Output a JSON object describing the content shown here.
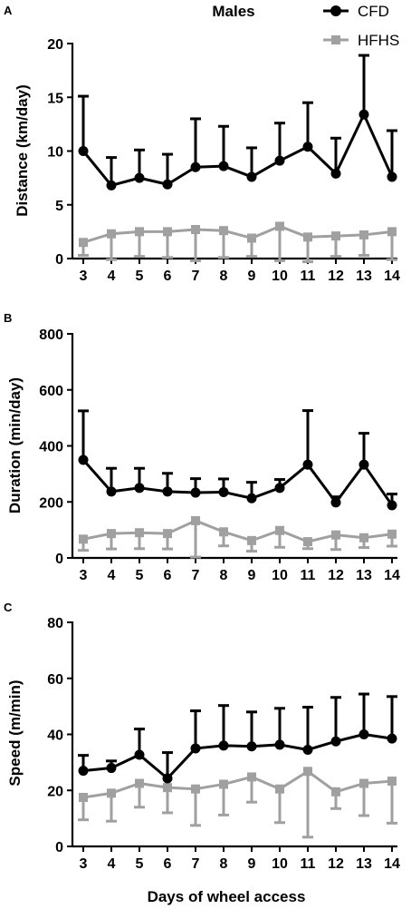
{
  "figure": {
    "title": "Males",
    "xlabel": "Days of wheel access",
    "legend": [
      {
        "name": "CFD",
        "color": "#000000",
        "marker": "circle"
      },
      {
        "name": "HFHS",
        "color": "#a0a0a0",
        "marker": "square"
      }
    ]
  },
  "chart_data": [
    {
      "type": "line",
      "panel": "A",
      "title": "",
      "xlabel": "",
      "ylabel": "Distance (km/day)",
      "x": [
        3,
        4,
        5,
        6,
        7,
        8,
        9,
        10,
        11,
        12,
        13,
        14
      ],
      "ylim": [
        0,
        20
      ],
      "yticks": [
        0,
        5,
        10,
        15,
        20
      ],
      "legend_position": "top-right",
      "series": [
        {
          "name": "CFD",
          "color": "#000000",
          "marker": "circle",
          "error_direction": "up",
          "values": [
            10.0,
            6.8,
            7.5,
            6.9,
            8.5,
            8.6,
            7.6,
            9.1,
            10.4,
            7.9,
            13.4,
            7.6
          ],
          "errors": [
            5.1,
            2.6,
            2.6,
            2.8,
            4.5,
            3.7,
            2.7,
            3.5,
            4.1,
            3.3,
            5.5,
            4.3
          ]
        },
        {
          "name": "HFHS",
          "color": "#a0a0a0",
          "marker": "square",
          "error_direction": "down",
          "values": [
            1.5,
            2.3,
            2.5,
            2.5,
            2.7,
            2.6,
            1.9,
            3.0,
            2.0,
            2.1,
            2.2,
            2.5
          ],
          "errors": [
            1.2,
            2.4,
            2.3,
            2.4,
            2.9,
            2.5,
            1.7,
            3.2,
            2.3,
            1.9,
            1.9,
            2.6
          ]
        }
      ]
    },
    {
      "type": "line",
      "panel": "B",
      "title": "",
      "xlabel": "",
      "ylabel": "Duration (min/day)",
      "x": [
        3,
        4,
        5,
        6,
        7,
        8,
        9,
        10,
        11,
        12,
        13,
        14
      ],
      "ylim": [
        0,
        800
      ],
      "yticks": [
        0,
        200,
        400,
        600,
        800
      ],
      "series": [
        {
          "name": "CFD",
          "color": "#000000",
          "marker": "circle",
          "error_direction": "up",
          "values": [
            350,
            237,
            250,
            237,
            233,
            235,
            213,
            250,
            333,
            198,
            333,
            188
          ],
          "errors": [
            175,
            83,
            70,
            65,
            50,
            47,
            57,
            30,
            193,
            20,
            112,
            40
          ]
        },
        {
          "name": "HFHS",
          "color": "#a0a0a0",
          "marker": "square",
          "error_direction": "down",
          "values": [
            67,
            87,
            90,
            87,
            133,
            93,
            62,
            98,
            58,
            82,
            72,
            85
          ],
          "errors": [
            40,
            55,
            57,
            55,
            130,
            50,
            38,
            60,
            25,
            52,
            35,
            43
          ]
        }
      ]
    },
    {
      "type": "line",
      "panel": "C",
      "title": "",
      "xlabel": "Days of wheel access",
      "ylabel": "Speed (m/min)",
      "x": [
        3,
        4,
        5,
        6,
        7,
        8,
        9,
        10,
        11,
        12,
        13,
        14
      ],
      "ylim": [
        0,
        80
      ],
      "yticks": [
        0,
        20,
        40,
        60,
        80
      ],
      "series": [
        {
          "name": "CFD",
          "color": "#000000",
          "marker": "circle",
          "error_direction": "up",
          "values": [
            27,
            28,
            32.7,
            24.3,
            35,
            36,
            35.7,
            36.3,
            34.5,
            37.5,
            40,
            38.5
          ],
          "errors": [
            5.5,
            2.5,
            9.2,
            9.2,
            13.4,
            14.3,
            12.3,
            13,
            15.2,
            15.7,
            14.4,
            15
          ]
        },
        {
          "name": "HFHS",
          "color": "#a0a0a0",
          "marker": "square",
          "error_direction": "down",
          "values": [
            17.5,
            19,
            22.5,
            21,
            20.5,
            22.2,
            24.8,
            20.5,
            26.8,
            19.5,
            22.5,
            23.3
          ],
          "errors": [
            8,
            10,
            8.5,
            9,
            13,
            11,
            9,
            12,
            23.5,
            6,
            11.5,
            15
          ]
        }
      ]
    }
  ]
}
